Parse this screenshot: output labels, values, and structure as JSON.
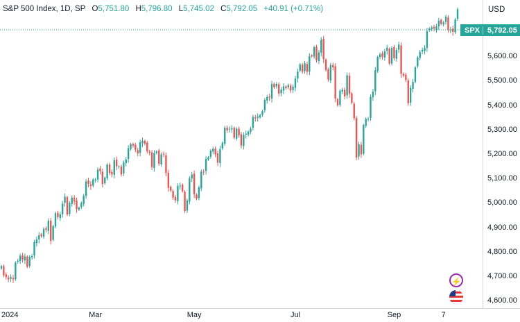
{
  "header": {
    "name": "S&P 500 Index, 1D, SP",
    "open_label": "O",
    "open": "5,751.80",
    "high_label": "H",
    "high": "5,796.80",
    "low_label": "L",
    "low": "5,745.02",
    "close_label": "C",
    "close": "5,792.05",
    "change": "+40.91 (+0.71%)"
  },
  "currency": "USD",
  "price_tag": {
    "symbol": "SPX",
    "price": "5,792.05"
  },
  "colors": {
    "up": "#26a69a",
    "down": "#ef5350",
    "event": "#9c27b0"
  },
  "icons": [
    "lightning-event-icon",
    "us-flag-event-icon"
  ],
  "chart_data": {
    "type": "candlestick",
    "title": "S&P 500 Index, 1D, SP",
    "ylim": [
      4570,
      5830
    ],
    "yticks": [
      4600,
      4700,
      4800,
      4900,
      5000,
      5100,
      5200,
      5300,
      5400,
      5500,
      5600,
      5700
    ],
    "ytick_labels": [
      "4,600.00",
      "4,700.00",
      "4,800.00",
      "4,900.00",
      "5,000.00",
      "5,100.00",
      "5,200.00",
      "5,300.00",
      "5,400.00",
      "5,500.00",
      "5,600.00",
      "5,700.00"
    ],
    "xticks": [
      {
        "label": "2024",
        "index": 0
      },
      {
        "label": "Mar",
        "index": 40
      },
      {
        "label": "May",
        "index": 82
      },
      {
        "label": "Jul",
        "index": 125
      },
      {
        "label": "Sep",
        "index": 167
      },
      {
        "label": "7",
        "index": 188
      }
    ],
    "last_price": 5792.05,
    "closes": [
      4742,
      4704,
      4697,
      4688,
      4697,
      4688,
      4756,
      4764,
      4784,
      4769,
      4781,
      4739,
      4780,
      4783,
      4840,
      4851,
      4868,
      4864,
      4894,
      4890,
      4927,
      4845,
      4906,
      4958,
      4942,
      4954,
      4997,
      5026,
      4953,
      5000,
      5022,
      5006,
      4975,
      4981,
      5000,
      5029,
      5088,
      5078,
      5069,
      5096,
      5096,
      5137,
      5130,
      5078,
      5104,
      5157,
      5123,
      5117,
      5175,
      5150,
      5149,
      5117,
      5165,
      5178,
      5224,
      5241,
      5234,
      5218,
      5203,
      5248,
      5254,
      5243,
      5211,
      5205,
      5147,
      5204,
      5211,
      5160,
      5199,
      5199,
      5123,
      5062,
      5051,
      5022,
      5011,
      5070,
      5071,
      5048,
      4967,
      5010,
      5100,
      5116,
      5036,
      5018,
      5064,
      5128,
      5127,
      5180,
      5187,
      5214,
      5222,
      5199,
      5165,
      5221,
      5246,
      5308,
      5297,
      5303,
      5306,
      5267,
      5304,
      5277,
      5235,
      5278,
      5283,
      5291,
      5304,
      5352,
      5346,
      5354,
      5360,
      5375,
      5421,
      5433,
      5431,
      5487,
      5473,
      5487,
      5447,
      5464,
      5477,
      5469,
      5482,
      5460,
      5475,
      5509,
      5537,
      5567,
      5537,
      5572,
      5537,
      5600,
      5600,
      5637,
      5584,
      5615,
      5667,
      5588,
      5544,
      5505,
      5564,
      5555,
      5427,
      5399,
      5459,
      5463,
      5436,
      5522,
      5446,
      5410,
      5347,
      5186,
      5240,
      5199,
      5319,
      5344,
      5344,
      5434,
      5455,
      5543,
      5597,
      5608,
      5597,
      5620,
      5635,
      5570,
      5634,
      5592,
      5625,
      5648,
      5528,
      5521,
      5503,
      5408,
      5471,
      5495,
      5555,
      5595,
      5618,
      5626,
      5634,
      5703,
      5713,
      5718,
      5713,
      5722,
      5745,
      5732,
      5738,
      5762,
      5708,
      5709,
      5700,
      5751,
      5792
    ]
  }
}
